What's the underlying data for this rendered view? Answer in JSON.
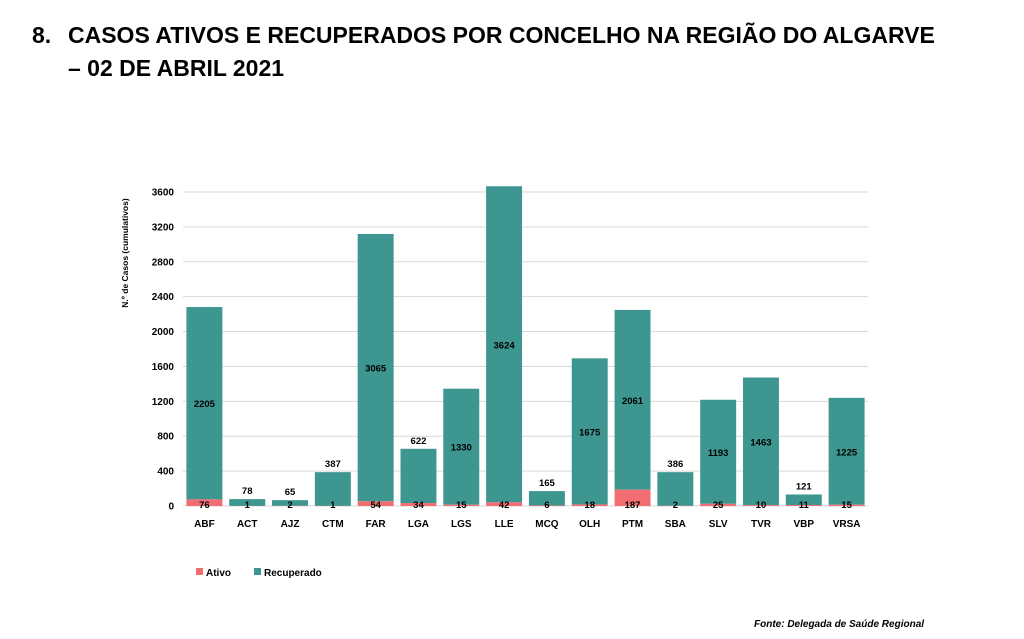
{
  "heading": {
    "number": "8.",
    "line1": "CASOS ATIVOS E RECUPERADOS POR CONCELHO NA REGIÃO DO ALGARVE",
    "line2": "– 02 DE ABRIL 2021"
  },
  "source": "Fonte: Delegada de Saúde Regional",
  "colors": {
    "ativo": "#f26d72",
    "recuperado": "#3d9690",
    "grid": "#d9d9d9"
  },
  "chart_data": {
    "type": "bar",
    "stacked": true,
    "title": "",
    "xlabel": "",
    "ylabel": "N.º de Casos (cumulativos)",
    "ylim": [
      0,
      3600
    ],
    "yticks": [
      0,
      400,
      800,
      1200,
      1600,
      2000,
      2400,
      2800,
      3200,
      3600
    ],
    "grid": true,
    "legend_position": "bottom-left",
    "categories": [
      "ABF",
      "ACT",
      "AJZ",
      "CTM",
      "FAR",
      "LGA",
      "LGS",
      "LLE",
      "MCQ",
      "OLH",
      "PTM",
      "SBA",
      "SLV",
      "TVR",
      "VBP",
      "VRSA"
    ],
    "series": [
      {
        "name": "Ativo",
        "values": [
          76,
          1,
          2,
          1,
          54,
          34,
          15,
          42,
          6,
          18,
          187,
          2,
          25,
          10,
          11,
          15
        ]
      },
      {
        "name": "Recuperado",
        "values": [
          2205,
          78,
          65,
          387,
          3065,
          622,
          1330,
          3624,
          165,
          1675,
          2061,
          386,
          1193,
          1463,
          121,
          1225
        ]
      }
    ]
  }
}
